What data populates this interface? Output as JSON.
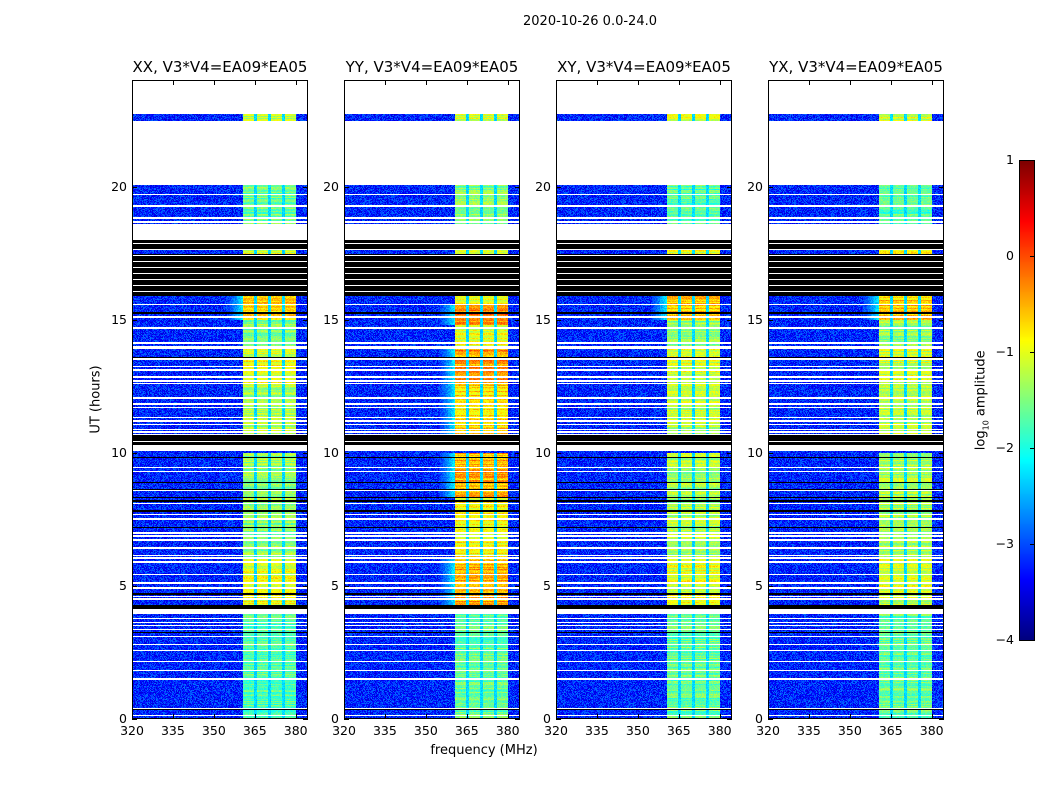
{
  "chart_data": {
    "type": "heatmap",
    "title": "2020-10-26 0.0-24.0",
    "xlabel": "frequency (MHz)",
    "ylabel": "UT (hours)",
    "xlim": [
      320,
      384.5
    ],
    "ylim": [
      0,
      24
    ],
    "xticks": [
      320,
      335,
      350,
      365,
      380
    ],
    "yticks": [
      0,
      5,
      10,
      15,
      20
    ],
    "colorbar": {
      "label_prefix": "log",
      "label_sub": "10",
      "label_suffix": " amplitude",
      "colormap": "jet",
      "range": [
        -4,
        1
      ],
      "ticks": [
        1,
        0,
        -1,
        -2,
        -3,
        -4
      ]
    },
    "background_level": -3.2,
    "band": {
      "start_mhz": 360.7,
      "end_mhz": 380.5,
      "subband_gaps_mhz": [
        365.4,
        370.5,
        375.7
      ]
    },
    "flagged_white_hours": [
      [
        20.1,
        22.5
      ],
      [
        22.75,
        24
      ],
      [
        18.0,
        18.6
      ],
      [
        10.05,
        10.3
      ],
      [
        3.9,
        4.05
      ]
    ],
    "flagged_black_hours": [
      [
        16.1,
        17.5
      ],
      [
        17.65,
        18.0
      ],
      [
        10.3,
        10.6
      ],
      [
        4.1,
        4.25
      ],
      [
        15.9,
        16.1
      ]
    ],
    "panels": [
      {
        "title": "XX, V3*V4=EA09*EA05",
        "band_levels": [
          [
            0,
            4,
            -1.7
          ],
          [
            4,
            6,
            -1.0
          ],
          [
            6,
            10,
            -1.4
          ],
          [
            10.3,
            12.5,
            -1.3
          ],
          [
            12.5,
            14,
            -1.0
          ],
          [
            14,
            15,
            -1.5
          ],
          [
            15,
            16,
            -0.6
          ],
          [
            16,
            18,
            -1.0
          ],
          [
            18.6,
            20.1,
            -1.6
          ],
          [
            22.5,
            22.75,
            -1.2
          ]
        ]
      },
      {
        "title": "YY, V3*V4=EA09*EA05",
        "band_levels": [
          [
            0,
            4,
            -1.6
          ],
          [
            4,
            6,
            -0.5
          ],
          [
            6,
            8.3,
            -0.9
          ],
          [
            8.3,
            10,
            -0.5
          ],
          [
            10.3,
            12.5,
            -0.7
          ],
          [
            12.5,
            14,
            -0.4
          ],
          [
            14,
            14.8,
            -1.0
          ],
          [
            14.8,
            15.6,
            -0.2
          ],
          [
            15.6,
            16,
            -1.0
          ],
          [
            16,
            18,
            -0.9
          ],
          [
            18.6,
            20.1,
            -1.5
          ],
          [
            22.5,
            22.75,
            -1.1
          ]
        ]
      },
      {
        "title": "XY, V3*V4=EA09*EA05",
        "band_levels": [
          [
            0,
            4,
            -1.6
          ],
          [
            4,
            6,
            -1.0
          ],
          [
            6,
            10,
            -1.3
          ],
          [
            10.3,
            12.5,
            -1.2
          ],
          [
            12.5,
            14,
            -1.0
          ],
          [
            14,
            15,
            -1.4
          ],
          [
            15,
            16,
            -0.6
          ],
          [
            16,
            18,
            -1.0
          ],
          [
            18.6,
            20.1,
            -1.7
          ],
          [
            22.5,
            22.75,
            -1.1
          ]
        ]
      },
      {
        "title": "YX, V3*V4=EA09*EA05",
        "band_levels": [
          [
            0,
            4,
            -1.6
          ],
          [
            4,
            6,
            -1.1
          ],
          [
            6,
            10,
            -1.3
          ],
          [
            10.3,
            12.5,
            -1.2
          ],
          [
            12.5,
            14,
            -1.1
          ],
          [
            14,
            15,
            -1.4
          ],
          [
            15,
            16,
            -0.6
          ],
          [
            16,
            18,
            -1.0
          ],
          [
            18.6,
            20.1,
            -1.7
          ],
          [
            22.5,
            22.75,
            -1.1
          ]
        ]
      }
    ]
  }
}
